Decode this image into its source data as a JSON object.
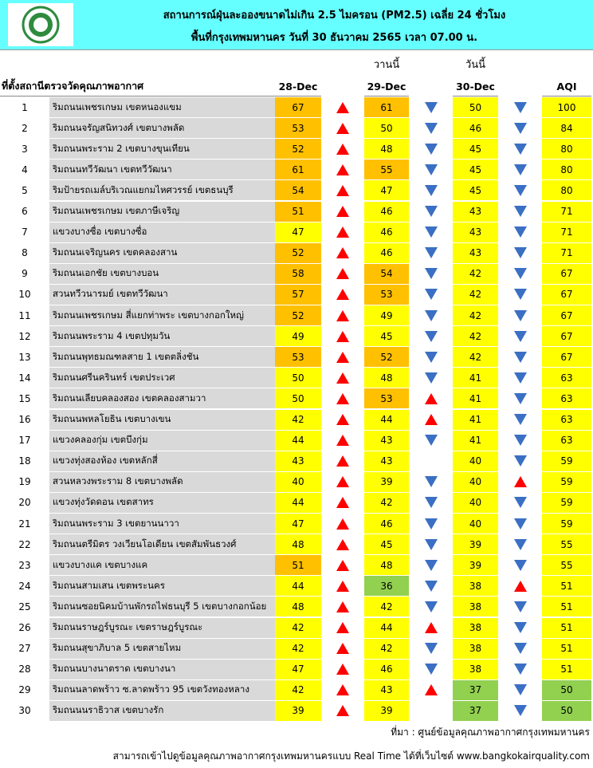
{
  "header": {
    "title": "สถานการณ์ฝุ่นละอองขนาดไม่เกิน 2.5 ไมครอน (PM2.5) เฉลี่ย 24 ชั่วโมง",
    "subtitle": "พื้นที่กรุงเทพมหานคร วันที่ 30 ธันวาคม 2565 เวลา 07.00 น."
  },
  "table": {
    "yesterday": "วานนี้",
    "today": "วันนี้",
    "columns": [
      "ที่ตั้งสถานีตรวจวัดคุณภาพอากาศ",
      "28-Dec",
      "29-Dec",
      "30-Dec",
      "AQI"
    ],
    "rows": [
      [
        "1",
        "ริมถนนเพชรเกษม เขตหนองแขม",
        67,
        "up",
        61,
        "down",
        50,
        "down",
        100
      ],
      [
        "2",
        "ริมถนนจรัญสนิทวงศ์ เขตบางพลัด",
        53,
        "up",
        50,
        "down",
        46,
        "down",
        84
      ],
      [
        "3",
        "ริมถนนพระราม 2 เขตบางขุนเทียน",
        52,
        "up",
        48,
        "down",
        45,
        "down",
        80
      ],
      [
        "4",
        "ริมถนนทวีวัฒนา เขตทวีวัฒนา",
        61,
        "up",
        55,
        "down",
        45,
        "down",
        80
      ],
      [
        "5",
        "ริมป้ายรถเมล์บริเวณแยกมไหศวรรย์ เขตธนบุรี",
        54,
        "up",
        47,
        "down",
        45,
        "down",
        80
      ],
      [
        "6",
        "ริมถนนเพชรเกษม เขตภาษีเจริญ",
        51,
        "up",
        46,
        "down",
        43,
        "down",
        71
      ],
      [
        "7",
        "แขวงบางซื่อ เขตบางซื่อ",
        47,
        "up",
        46,
        "down",
        43,
        "down",
        71
      ],
      [
        "8",
        "ริมถนนเจริญนคร เขตคลองสาน",
        52,
        "up",
        46,
        "down",
        43,
        "down",
        71
      ],
      [
        "9",
        "ริมถนนเอกชัย เขตบางบอน",
        58,
        "up",
        54,
        "down",
        42,
        "down",
        67
      ],
      [
        "10",
        "สวนทวีวนารมย์ เขตทวีวัฒนา",
        57,
        "up",
        53,
        "down",
        42,
        "down",
        67
      ],
      [
        "11",
        "ริมถนนเพชรเกษม สี่แยกท่าพระ เขตบางกอกใหญ่",
        52,
        "up",
        49,
        "down",
        42,
        "down",
        67
      ],
      [
        "12",
        "ริมถนนพระราม 4 เขตปทุมวัน",
        49,
        "up",
        45,
        "down",
        42,
        "down",
        67
      ],
      [
        "13",
        "ริมถนนพุทธมณฑลสาย 1 เขตตลิ่งชัน",
        53,
        "up",
        52,
        "down",
        42,
        "down",
        67
      ],
      [
        "14",
        "ริมถนนศรีนครินทร์ เขตประเวศ",
        50,
        "up",
        48,
        "down",
        41,
        "down",
        63
      ],
      [
        "15",
        "ริมถนนเลียบคลองสอง เขตคลองสามวา",
        50,
        "up",
        53,
        "up",
        41,
        "down",
        63
      ],
      [
        "16",
        "ริมถนนพหลโยธิน เขตบางเขน",
        42,
        "up",
        44,
        "up",
        41,
        "down",
        63
      ],
      [
        "17",
        "แขวงคลองกุ่ม เขตบึงกุ่ม",
        44,
        "up",
        43,
        "down",
        41,
        "down",
        63
      ],
      [
        "18",
        "แขวงทุ่งสองห้อง เขตหลักสี่",
        43,
        "up",
        43,
        null,
        40,
        "down",
        59
      ],
      [
        "19",
        "สวนหลวงพระราม 8 เขตบางพลัด",
        40,
        "up",
        39,
        "down",
        40,
        "up",
        59
      ],
      [
        "20",
        "แขวงทุ่งวัดดอน เขตสาทร",
        44,
        "up",
        42,
        "down",
        40,
        "down",
        59
      ],
      [
        "21",
        "ริมถนนพระราม 3 เขตยานนาวา",
        47,
        "up",
        46,
        "down",
        40,
        "down",
        59
      ],
      [
        "22",
        "ริมถนนตรีมิตร วงเวียนโอเดียน เขตสัมพันธวงศ์",
        48,
        "up",
        45,
        "down",
        39,
        "down",
        55
      ],
      [
        "23",
        "แขวงบางแค เขตบางแค",
        51,
        "up",
        48,
        "down",
        39,
        "down",
        55
      ],
      [
        "24",
        "ริมถนนสามเสน เขตพระนคร",
        44,
        "up",
        36,
        "down",
        38,
        "up",
        51
      ],
      [
        "25",
        "ริมถนนซอยนิคมบ้านพักรถไฟธนบุรี 5 เขตบางกอกน้อย",
        48,
        "up",
        42,
        "down",
        38,
        "down",
        51
      ],
      [
        "26",
        "ริมถนนราษฎร์บูรณะ เขตราษฎร์บูรณะ",
        42,
        "up",
        44,
        "up",
        38,
        "down",
        51
      ],
      [
        "27",
        "ริมถนนสุขาภิบาล 5 เขตสายไหม",
        42,
        "up",
        42,
        "down",
        38,
        "down",
        51
      ],
      [
        "28",
        "ริมถนนบางนาตราด เขตบางนา",
        47,
        "up",
        46,
        "down",
        38,
        "down",
        51
      ],
      [
        "29",
        "ริมถนนลาดพร้าว ซ.ลาดพร้าว 95 เขตวังทองหลาง",
        42,
        "up",
        43,
        "up",
        37,
        "down",
        50
      ],
      [
        "30",
        "ริมถนนนราธิวาส เขตบางรัก",
        39,
        "up",
        39,
        null,
        37,
        "down",
        50
      ]
    ]
  },
  "footer": {
    "source": "ที่มา : ศูนย์ข้อมูลคุณภาพอากาศกรุงเทพมหานคร",
    "website": "สามารถเข้าไปดูข้อมูลคุณภาพอากาศกรุงเทพมหานครแบบ Real Time ได้ที่เว็บไซต์ www.bangkokairquality.com"
  }
}
